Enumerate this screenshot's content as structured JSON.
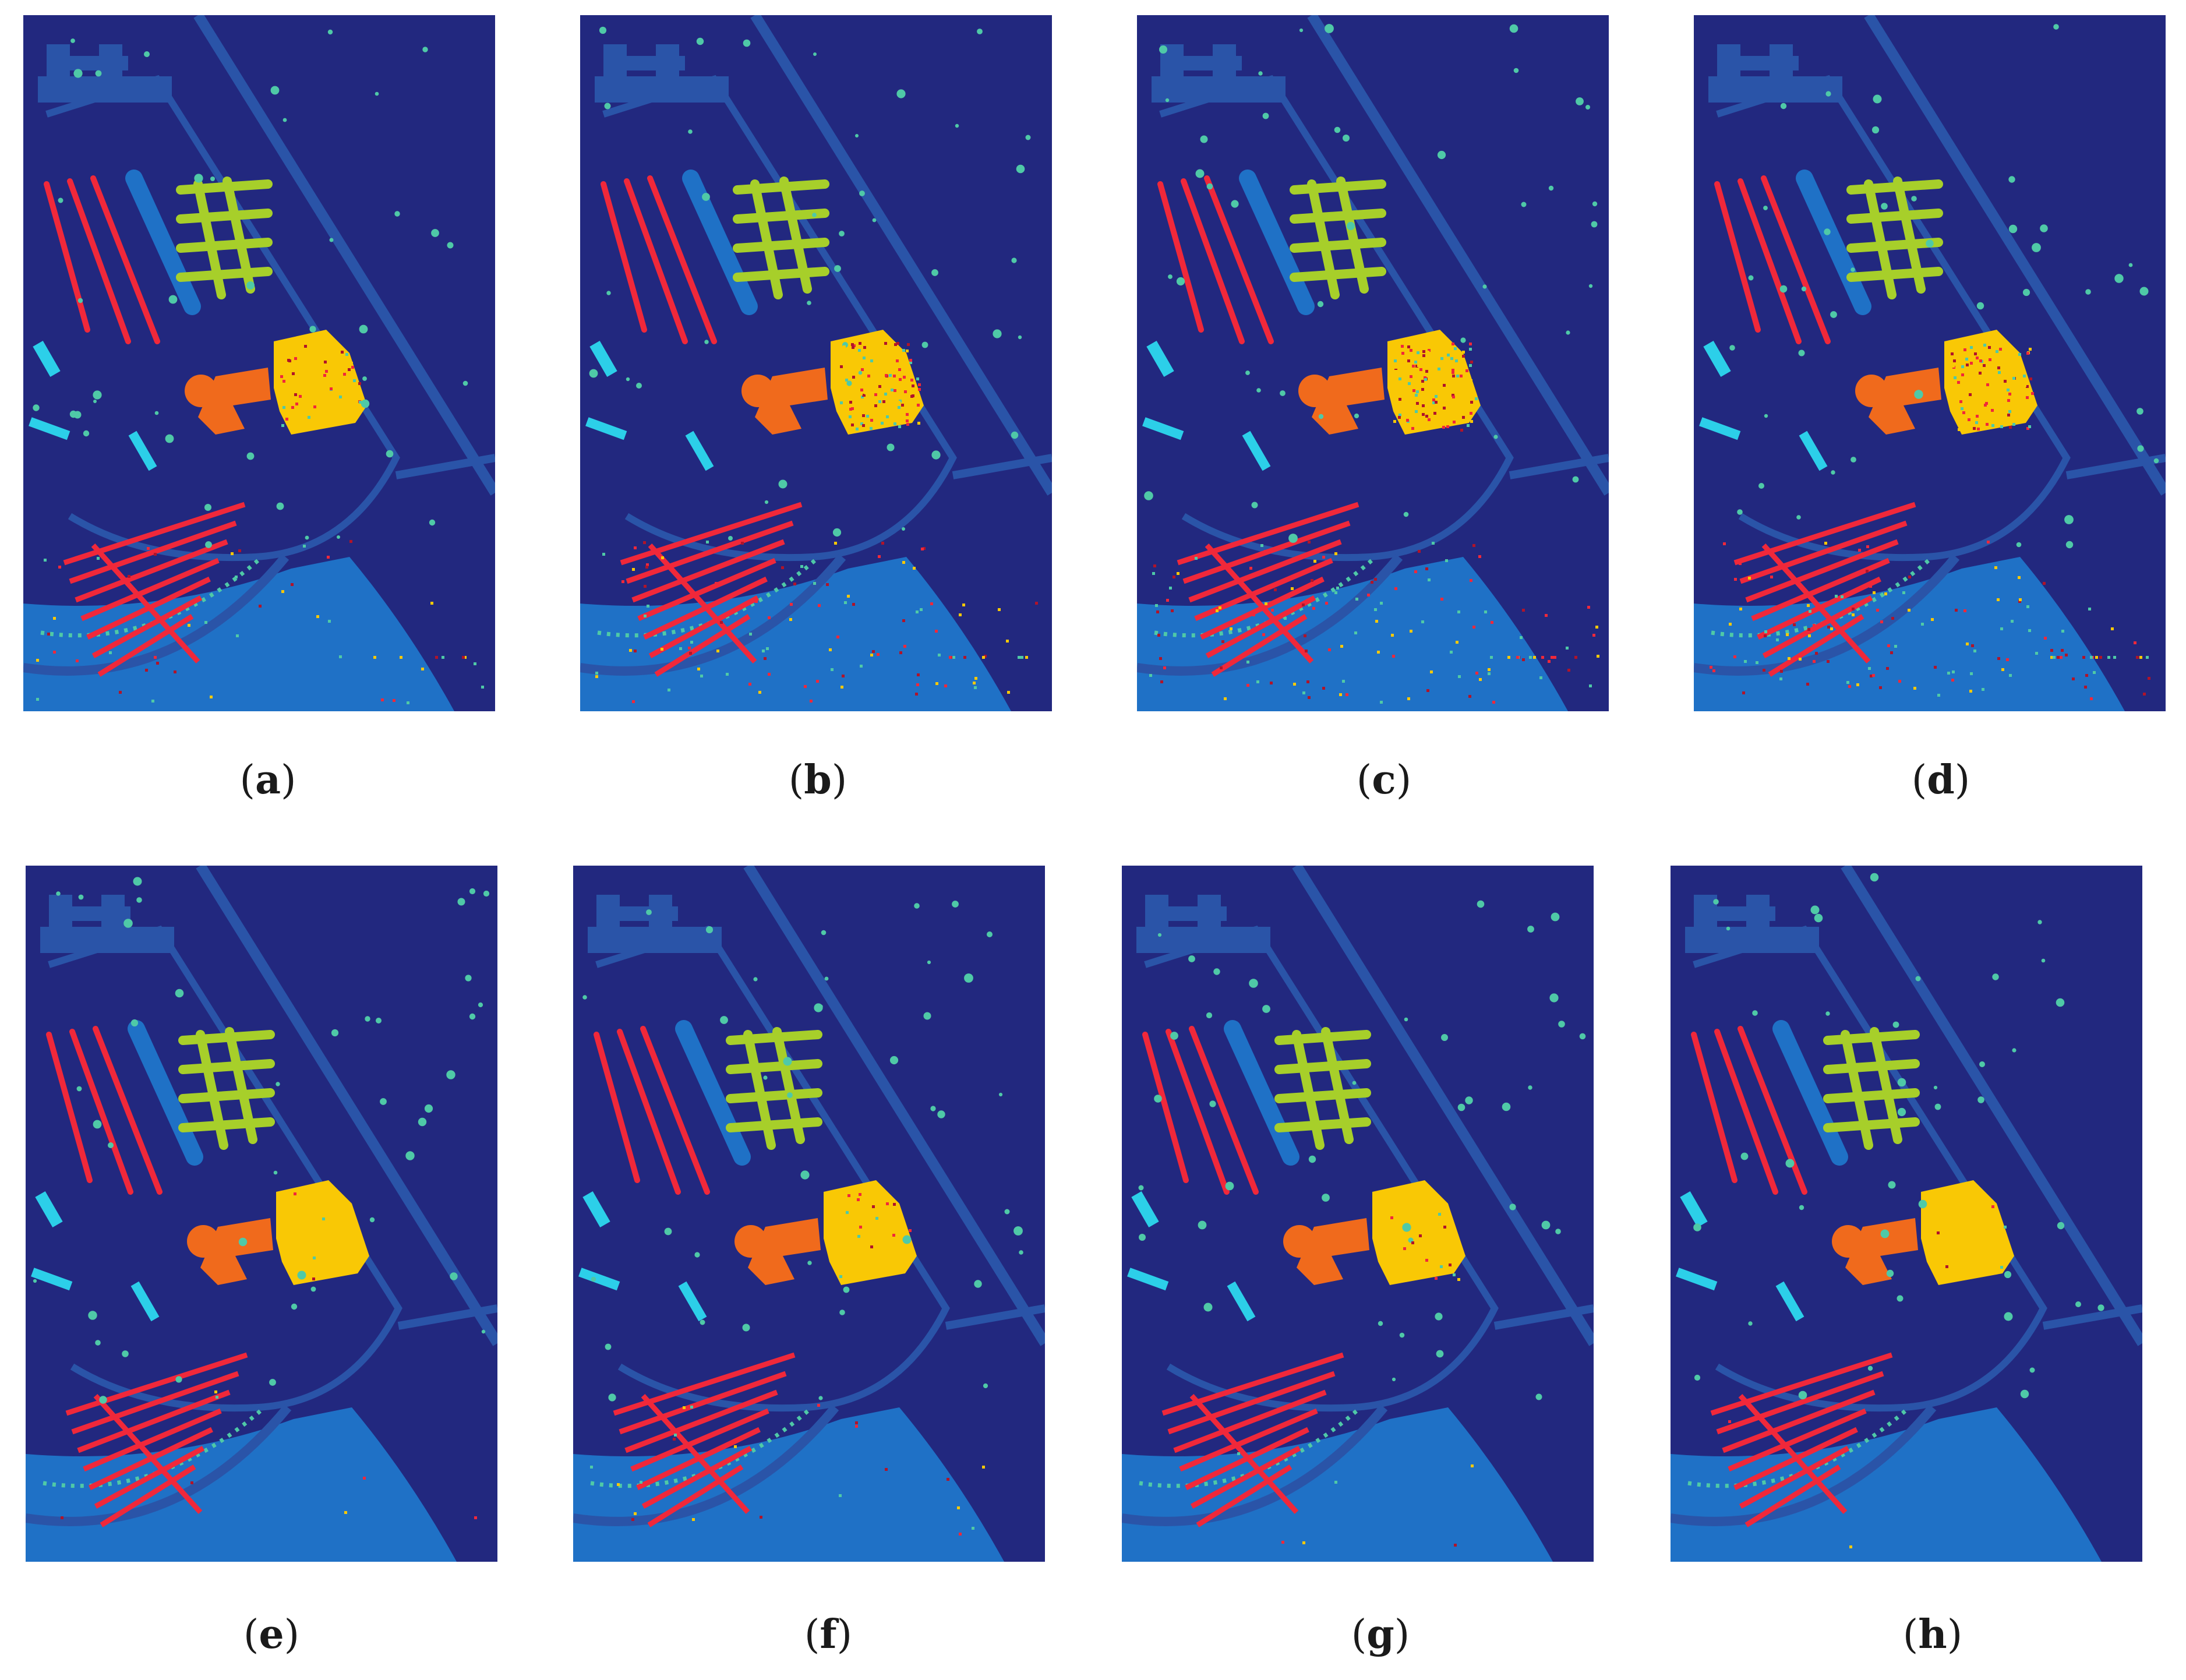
{
  "colors": {
    "background": "#22287f",
    "road": "#2a54a8",
    "meadow": "#1f71c6",
    "trees": "#4fc9a7",
    "red_class": "#f0283a",
    "dark_red": "#b0142a",
    "yellow_green": "#a7cf2a",
    "gold": "#f9c805",
    "orange": "#f06a1c",
    "cyan": "#2ccfe9"
  },
  "panels": [
    {
      "id": "a",
      "label": "a",
      "noise": 0.35
    },
    {
      "id": "b",
      "label": "b",
      "noise": 0.75
    },
    {
      "id": "c",
      "label": "c",
      "noise": 0.9
    },
    {
      "id": "d",
      "label": "d",
      "noise": 0.8
    },
    {
      "id": "e",
      "label": "e",
      "noise": 0.05
    },
    {
      "id": "f",
      "label": "f",
      "noise": 0.15
    },
    {
      "id": "g",
      "label": "g",
      "noise": 0.08
    },
    {
      "id": "h",
      "label": "h",
      "noise": 0.03
    }
  ]
}
